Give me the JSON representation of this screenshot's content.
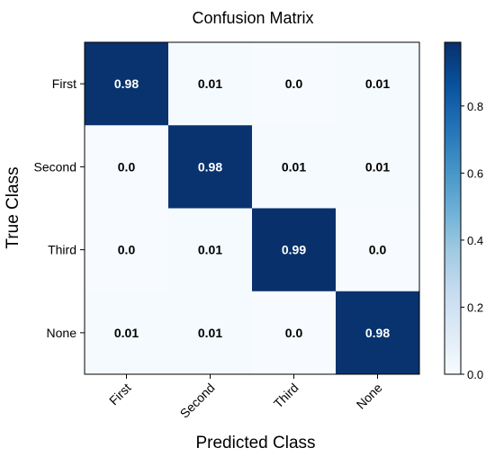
{
  "chart_data": {
    "type": "heatmap",
    "title": "Confusion Matrix",
    "xlabel": "Predicted Class",
    "ylabel": "True Class",
    "x_categories": [
      "First",
      "Second",
      "Third",
      "None"
    ],
    "y_categories": [
      "First",
      "Second",
      "Third",
      "None"
    ],
    "values": [
      [
        0.98,
        0.01,
        0.0,
        0.01
      ],
      [
        0.0,
        0.98,
        0.01,
        0.01
      ],
      [
        0.0,
        0.01,
        0.99,
        0.0
      ],
      [
        0.01,
        0.01,
        0.0,
        0.98
      ]
    ],
    "value_labels": [
      [
        "0.98",
        "0.01",
        "0.0",
        "0.01"
      ],
      [
        "0.0",
        "0.98",
        "0.01",
        "0.01"
      ],
      [
        "0.0",
        "0.01",
        "0.99",
        "0.0"
      ],
      [
        "0.01",
        "0.01",
        "0.0",
        "0.98"
      ]
    ],
    "colorbar": {
      "ticks": [
        0.0,
        0.2,
        0.4,
        0.6,
        0.8
      ],
      "tick_labels": [
        "0.0",
        "0.2",
        "0.4",
        "0.6",
        "0.8"
      ],
      "range": [
        0.0,
        0.99
      ],
      "colormap": "Blues",
      "low_color": "#f7fbff",
      "high_color": "#08306b"
    },
    "grid": false,
    "x_tick_rotation_deg": 45
  }
}
